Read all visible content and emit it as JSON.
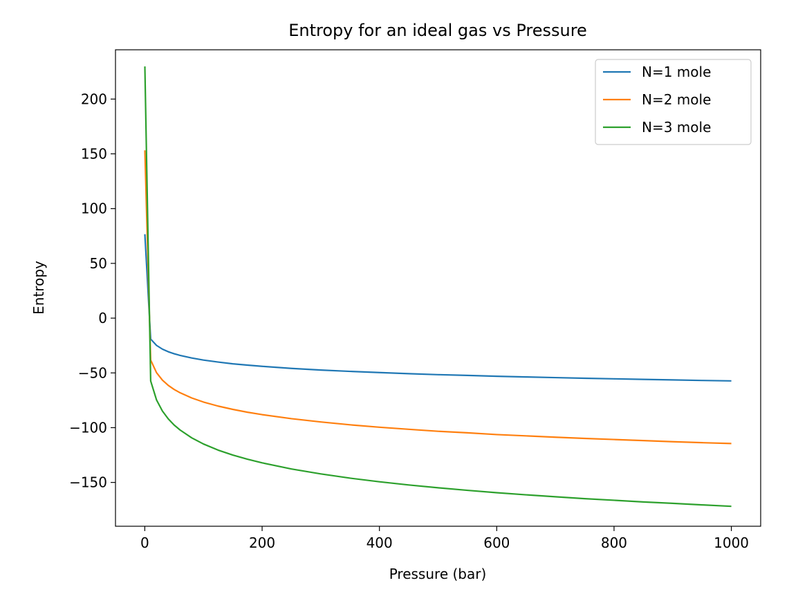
{
  "chart_data": {
    "type": "line",
    "title": "Entropy for an ideal gas vs Pressure",
    "xlabel": "Pressure (bar)",
    "ylabel": "Entropy",
    "xlim": [
      -50,
      1050
    ],
    "ylim": [
      -190,
      245
    ],
    "xticks": [
      0,
      200,
      400,
      600,
      800,
      1000
    ],
    "yticks": [
      -150,
      -100,
      -50,
      0,
      50,
      100,
      150,
      200
    ],
    "xtick_labels": [
      "0",
      "200",
      "400",
      "600",
      "800",
      "1000"
    ],
    "ytick_labels": [
      "−150",
      "−100",
      "−50",
      "0",
      "50",
      "100",
      "150",
      "200"
    ],
    "grid": false,
    "legend_position": "top-right",
    "x": [
      0.1,
      10,
      20,
      30,
      40,
      50,
      60,
      80,
      100,
      125,
      150,
      175,
      200,
      250,
      300,
      350,
      400,
      450,
      500,
      550,
      600,
      650,
      700,
      750,
      800,
      850,
      900,
      950,
      1000
    ],
    "series": [
      {
        "name": "N=1 mole",
        "color": "#1f77b4",
        "values": [
          76.6,
          -19.1,
          -24.9,
          -28.3,
          -30.7,
          -32.5,
          -34.0,
          -36.4,
          -38.3,
          -40.1,
          -41.7,
          -42.9,
          -44.0,
          -45.9,
          -47.4,
          -48.6,
          -49.7,
          -50.7,
          -51.6,
          -52.3,
          -53.1,
          -53.7,
          -54.3,
          -54.9,
          -55.4,
          -55.9,
          -56.4,
          -56.9,
          -57.3
        ]
      },
      {
        "name": "N=2 mole",
        "color": "#ff7f0e",
        "values": [
          153.2,
          -38.3,
          -49.8,
          -56.6,
          -61.4,
          -65.1,
          -68.1,
          -72.9,
          -76.6,
          -80.3,
          -83.3,
          -85.9,
          -88.1,
          -91.8,
          -94.8,
          -97.4,
          -99.6,
          -101.5,
          -103.3,
          -104.7,
          -106.3,
          -107.5,
          -108.7,
          -109.8,
          -110.8,
          -111.8,
          -112.8,
          -113.7,
          -114.5
        ]
      },
      {
        "name": "N=3 mole",
        "color": "#2ca02c",
        "values": [
          229.8,
          -57.4,
          -74.7,
          -84.8,
          -92.0,
          -97.6,
          -102.1,
          -109.3,
          -114.9,
          -120.5,
          -125.0,
          -128.8,
          -132.1,
          -137.7,
          -142.2,
          -146.1,
          -149.4,
          -152.3,
          -154.9,
          -157.2,
          -159.4,
          -161.3,
          -163.1,
          -164.8,
          -166.3,
          -167.8,
          -169.1,
          -170.5,
          -171.8
        ]
      }
    ]
  }
}
